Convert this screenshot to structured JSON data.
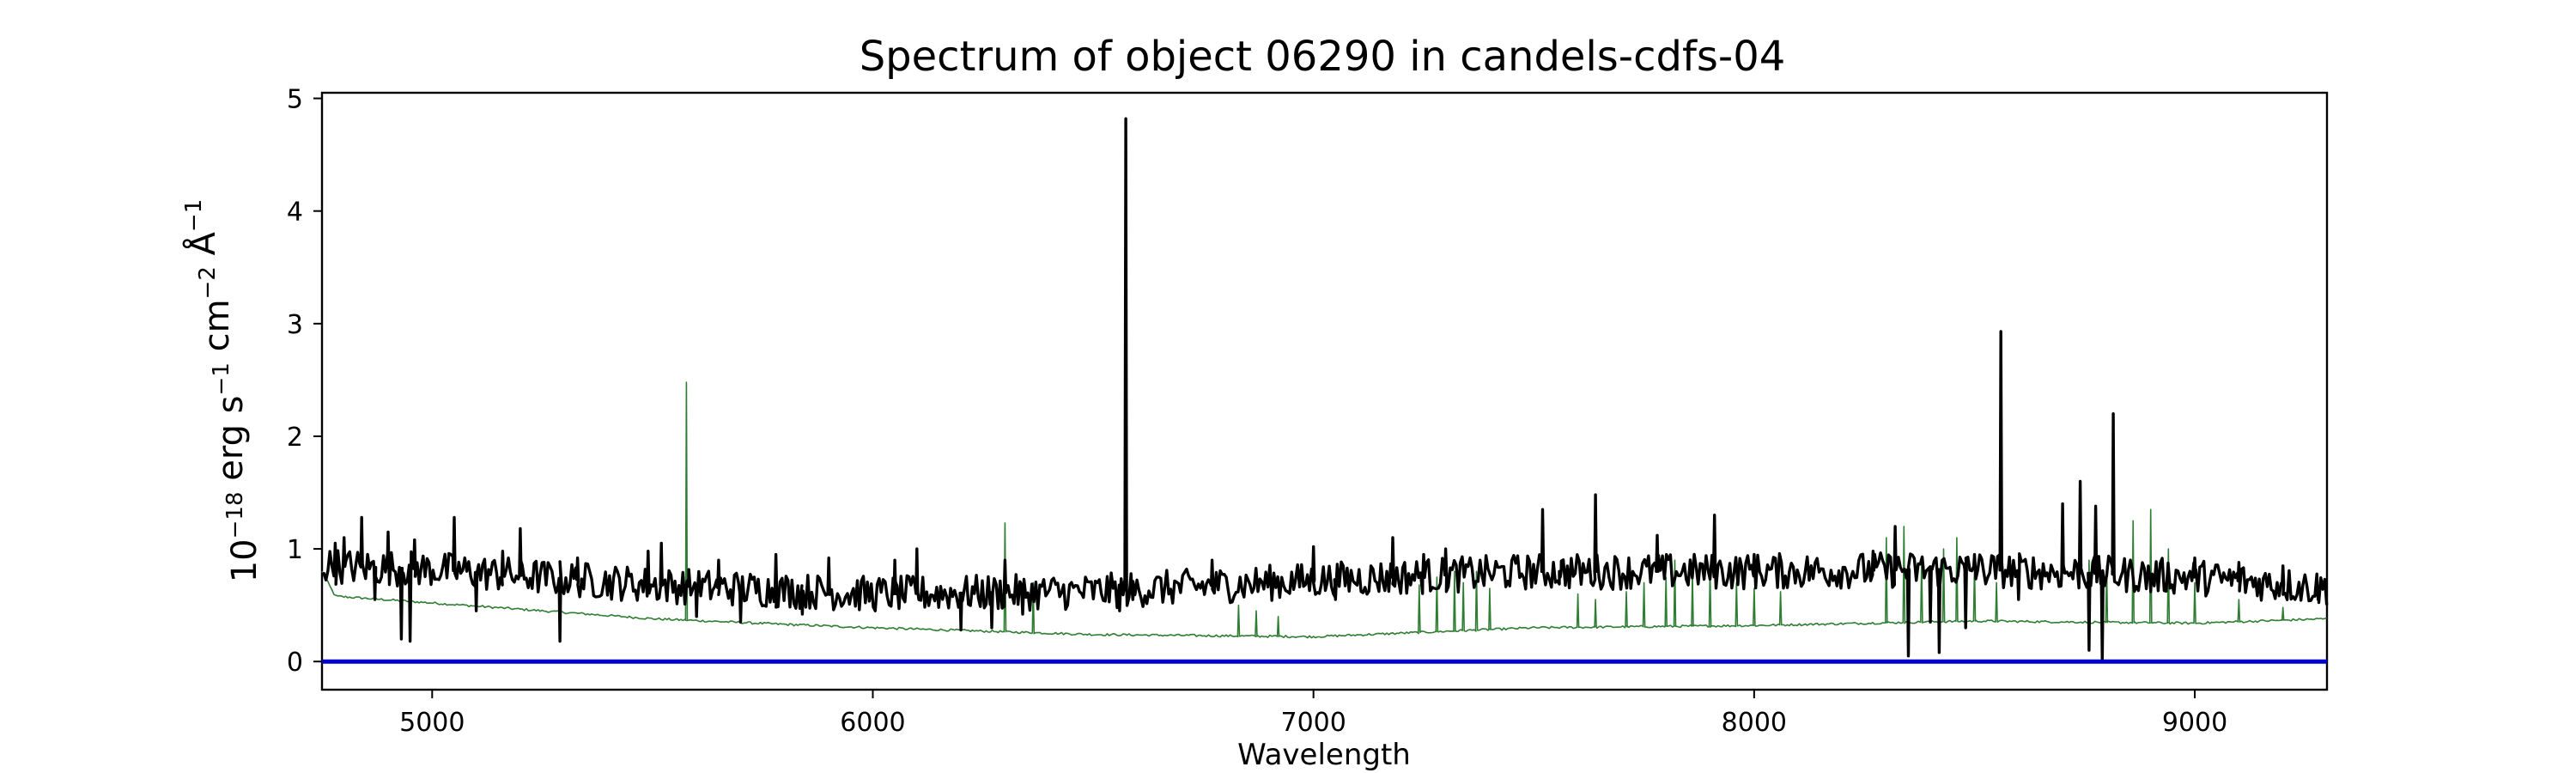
{
  "chart_data": {
    "type": "line",
    "title": "Spectrum of object 06290 in candels-cdfs-04",
    "xlabel": "Wavelength",
    "ylabel": {
      "parts": [
        {
          "text": "10",
          "sup": false
        },
        {
          "text": "−18",
          "sup": true
        },
        {
          "text": " erg s",
          "sup": false
        },
        {
          "text": "−1",
          "sup": true
        },
        {
          "text": " cm",
          "sup": false
        },
        {
          "text": "−2",
          "sup": true
        },
        {
          "text": " Å",
          "sup": false
        },
        {
          "text": "−1",
          "sup": true
        }
      ]
    },
    "xlim": [
      4750,
      9300
    ],
    "ylim": [
      -0.25,
      5.05
    ],
    "xticks": [
      5000,
      6000,
      7000,
      8000,
      9000
    ],
    "yticks": [
      0,
      1,
      2,
      3,
      4,
      5
    ],
    "grid": false,
    "series": [
      {
        "role": "flux",
        "color": "#000000",
        "baseline": [
          [
            4750,
            0.85
          ],
          [
            5000,
            0.82
          ],
          [
            5500,
            0.68
          ],
          [
            6000,
            0.6
          ],
          [
            6500,
            0.62
          ],
          [
            7000,
            0.72
          ],
          [
            7500,
            0.8
          ],
          [
            8000,
            0.8
          ],
          [
            8500,
            0.82
          ],
          [
            9000,
            0.75
          ],
          [
            9300,
            0.65
          ]
        ],
        "noise_amplitude": 0.16,
        "spikes": [
          [
            4780,
            1.05
          ],
          [
            4800,
            1.1
          ],
          [
            4840,
            1.28
          ],
          [
            4870,
            0.55
          ],
          [
            4900,
            1.15
          ],
          [
            4930,
            0.2
          ],
          [
            4950,
            0.18
          ],
          [
            4960,
            1.08
          ],
          [
            5050,
            1.28
          ],
          [
            5100,
            0.45
          ],
          [
            5160,
            0.98
          ],
          [
            5200,
            1.18
          ],
          [
            5290,
            0.18
          ],
          [
            5330,
            0.92
          ],
          [
            5490,
            0.98
          ],
          [
            5520,
            1.05
          ],
          [
            5580,
            0.72
          ],
          [
            5600,
            0.4
          ],
          [
            5650,
            0.9
          ],
          [
            5700,
            0.35
          ],
          [
            5780,
            0.95
          ],
          [
            5840,
            0.42
          ],
          [
            5900,
            0.92
          ],
          [
            6050,
            0.9
          ],
          [
            6100,
            1.0
          ],
          [
            6200,
            0.28
          ],
          [
            6270,
            0.3
          ],
          [
            6300,
            0.9
          ],
          [
            6340,
            0.42
          ],
          [
            6560,
            0.45
          ],
          [
            6574,
            4.82
          ],
          [
            6590,
            0.55
          ],
          [
            6770,
            0.9
          ],
          [
            7000,
            1.02
          ],
          [
            7050,
            0.55
          ],
          [
            7180,
            1.1
          ],
          [
            7250,
            0.95
          ],
          [
            7300,
            1.0
          ],
          [
            7520,
            1.35
          ],
          [
            7560,
            0.75
          ],
          [
            7640,
            1.48
          ],
          [
            7780,
            1.12
          ],
          [
            7910,
            1.3
          ],
          [
            8000,
            0.95
          ],
          [
            8270,
            0.98
          ],
          [
            8320,
            1.2
          ],
          [
            8350,
            0.05
          ],
          [
            8400,
            0.35
          ],
          [
            8420,
            0.08
          ],
          [
            8480,
            0.3
          ],
          [
            8500,
            0.95
          ],
          [
            8560,
            2.93
          ],
          [
            8600,
            0.55
          ],
          [
            8700,
            1.4
          ],
          [
            8740,
            1.6
          ],
          [
            8760,
            0.1
          ],
          [
            8775,
            1.38
          ],
          [
            8790,
            0.0
          ],
          [
            8815,
            2.2
          ],
          [
            8900,
            0.62
          ],
          [
            9000,
            0.92
          ],
          [
            9100,
            0.88
          ],
          [
            9200,
            0.85
          ],
          [
            9280,
            0.55
          ]
        ]
      },
      {
        "role": "noise",
        "color": "#2e7d32",
        "baseline": [
          [
            4750,
            0.8
          ],
          [
            4780,
            0.58
          ],
          [
            5000,
            0.52
          ],
          [
            5500,
            0.38
          ],
          [
            5800,
            0.33
          ],
          [
            6000,
            0.3
          ],
          [
            6500,
            0.24
          ],
          [
            7000,
            0.22
          ],
          [
            7500,
            0.3
          ],
          [
            8000,
            0.32
          ],
          [
            8500,
            0.36
          ],
          [
            9000,
            0.34
          ],
          [
            9300,
            0.38
          ]
        ],
        "spikes": [
          [
            5577,
            2.48
          ],
          [
            6300,
            1.23
          ],
          [
            6364,
            0.7
          ],
          [
            6830,
            0.5
          ],
          [
            6870,
            0.45
          ],
          [
            6920,
            0.4
          ],
          [
            7240,
            0.68
          ],
          [
            7280,
            0.75
          ],
          [
            7320,
            0.8
          ],
          [
            7340,
            0.7
          ],
          [
            7370,
            0.8
          ],
          [
            7400,
            0.65
          ],
          [
            7600,
            0.6
          ],
          [
            7640,
            0.55
          ],
          [
            7710,
            0.62
          ],
          [
            7750,
            0.7
          ],
          [
            7800,
            0.75
          ],
          [
            7820,
            0.9
          ],
          [
            7860,
            0.78
          ],
          [
            7900,
            0.8
          ],
          [
            7960,
            0.7
          ],
          [
            8000,
            0.65
          ],
          [
            8060,
            0.62
          ],
          [
            8300,
            1.1
          ],
          [
            8340,
            1.2
          ],
          [
            8380,
            0.9
          ],
          [
            8430,
            1.0
          ],
          [
            8460,
            1.1
          ],
          [
            8500,
            0.85
          ],
          [
            8550,
            0.7
          ],
          [
            8760,
            0.9
          ],
          [
            8800,
            0.85
          ],
          [
            8860,
            1.25
          ],
          [
            8900,
            1.35
          ],
          [
            8940,
            1.0
          ],
          [
            9000,
            0.7
          ],
          [
            9100,
            0.55
          ],
          [
            9200,
            0.48
          ]
        ]
      },
      {
        "role": "zero",
        "color": "#0000cc",
        "points": [
          [
            4750,
            0
          ],
          [
            9300,
            0
          ]
        ]
      }
    ]
  }
}
